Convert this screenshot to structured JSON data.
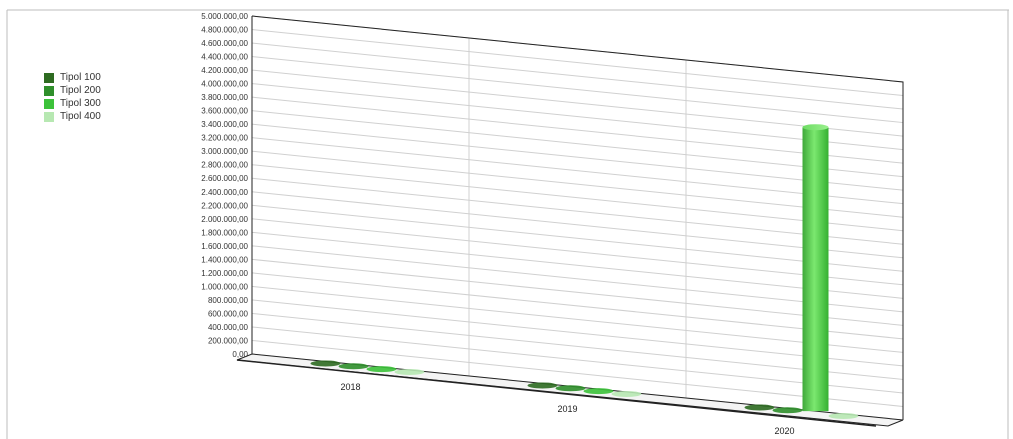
{
  "chart_data": {
    "type": "bar",
    "categories": [
      "2018",
      "2019",
      "2020"
    ],
    "series": [
      {
        "name": "Tipol 100",
        "color": "#2e6b21",
        "values": [
          0,
          0,
          0
        ]
      },
      {
        "name": "Tipol 200",
        "color": "#2f8f2b",
        "values": [
          0,
          0,
          0
        ]
      },
      {
        "name": "Tipol 300",
        "color": "#3cc23a",
        "values": [
          0,
          0,
          4200000
        ]
      },
      {
        "name": "Tipol 400",
        "color": "#b7e8b2",
        "values": [
          0,
          0,
          0
        ]
      }
    ],
    "yticks": [
      "0,00",
      "200.000,00",
      "400.000,00",
      "600.000,00",
      "800.000,00",
      "1.000.000,00",
      "1.200.000,00",
      "1.400.000,00",
      "1.600.000,00",
      "1.800.000,00",
      "2.000.000,00",
      "2.200.000,00",
      "2.400.000,00",
      "2.600.000,00",
      "2.800.000,00",
      "3.000.000,00",
      "3.200.000,00",
      "3.400.000,00",
      "3.600.000,00",
      "3.800.000,00",
      "4.000.000,00",
      "4.200.000,00",
      "4.400.000,00",
      "4.600.000,00",
      "4.800.000,00",
      "5.000.000,00"
    ],
    "ylim": [
      0,
      5000000
    ],
    "grid": true,
    "legend_position": "left",
    "title": "",
    "xlabel": "",
    "ylabel": ""
  }
}
